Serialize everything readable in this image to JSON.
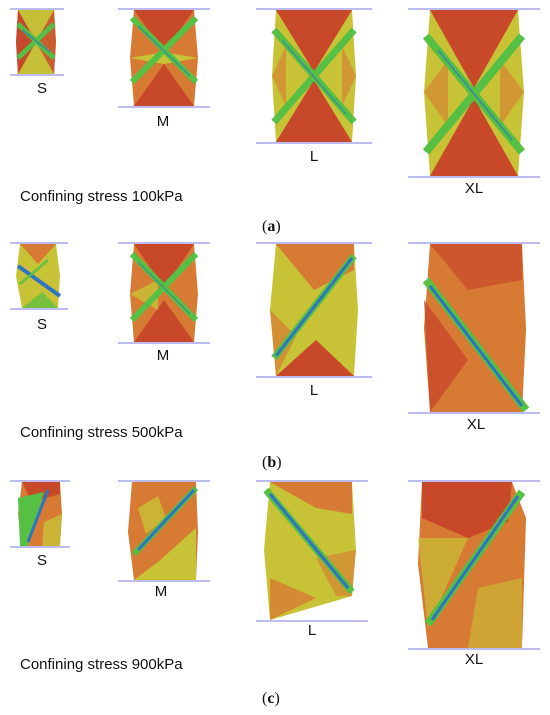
{
  "colors": {
    "red": "#c8482a",
    "orange": "#d77a33",
    "yellow": "#c8c236",
    "green": "#55c043",
    "blue": "#2f74c2",
    "platen_line": "#7a7ae0"
  },
  "panels": [
    {
      "id": "a",
      "caption": "Confining stress 100kPa",
      "label_open": "(",
      "label_letter": "a",
      "label_close": ")",
      "specimens": [
        {
          "size": "S",
          "pattern": "x-band"
        },
        {
          "size": "M",
          "pattern": "x-band"
        },
        {
          "size": "L",
          "pattern": "x-band"
        },
        {
          "size": "XL",
          "pattern": "x-band"
        }
      ]
    },
    {
      "id": "b",
      "caption": "Confining stress 500kPa",
      "label_open": "(",
      "label_letter": "b",
      "label_close": ")",
      "specimens": [
        {
          "size": "S",
          "pattern": "single-band-down"
        },
        {
          "size": "M",
          "pattern": "x-band"
        },
        {
          "size": "L",
          "pattern": "single-band-up"
        },
        {
          "size": "XL",
          "pattern": "single-band-down"
        }
      ]
    },
    {
      "id": "c",
      "caption": "Confining stress 900kPa",
      "label_open": "(",
      "label_letter": "c",
      "label_close": ")",
      "specimens": [
        {
          "size": "S",
          "pattern": "single-band-up"
        },
        {
          "size": "M",
          "pattern": "single-band-up"
        },
        {
          "size": "L",
          "pattern": "single-band-down"
        },
        {
          "size": "XL",
          "pattern": "single-band-up"
        }
      ]
    }
  ]
}
